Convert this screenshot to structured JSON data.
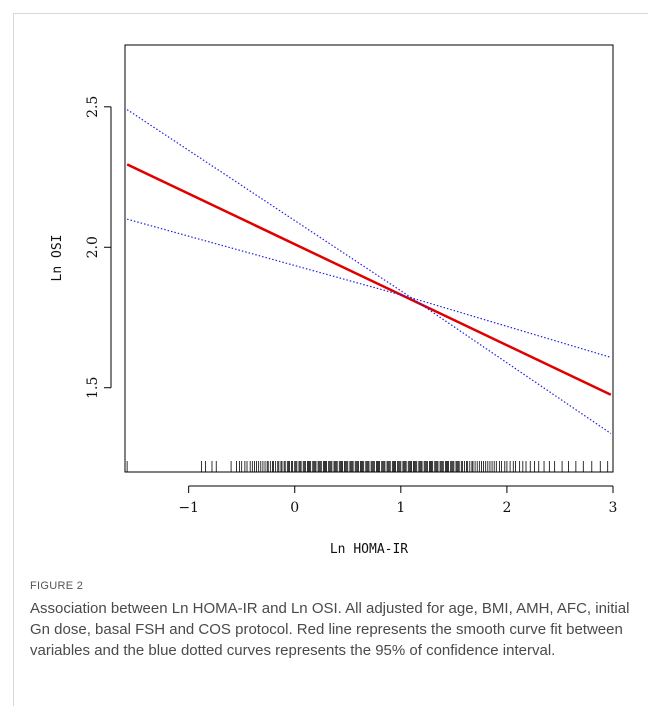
{
  "chart_data": {
    "type": "line",
    "title": "",
    "xlabel": "Ln HOMA-IR",
    "ylabel": "Ln OSI",
    "xlim": [
      -1.6,
      3.0
    ],
    "ylim": [
      1.2,
      2.72
    ],
    "x_ticks": [
      -1,
      0,
      1,
      2,
      3
    ],
    "x_tick_labels": [
      "−1",
      "0",
      "1",
      "2",
      "3"
    ],
    "y_ticks": [
      1.5,
      2.0,
      2.5
    ],
    "y_tick_labels": [
      "1.5",
      "2.0",
      "2.5"
    ],
    "grid": false,
    "series": [
      {
        "role": "fit",
        "color": "#e00000",
        "style": "solid",
        "x": [
          -1.58,
          2.98
        ],
        "y": [
          2.295,
          1.475
        ]
      },
      {
        "role": "ci_upper",
        "color": "#2020e0",
        "style": "dotted",
        "x": [
          -1.58,
          1.1,
          2.98
        ],
        "y": [
          2.49,
          1.82,
          1.608
        ]
      },
      {
        "role": "ci_lower",
        "color": "#2020e0",
        "style": "dotted",
        "x": [
          -1.58,
          1.1,
          2.98
        ],
        "y": [
          2.1,
          1.82,
          1.337
        ]
      }
    ],
    "rug_x": [
      -1.58,
      -0.88,
      -0.84,
      -0.78,
      -0.74,
      -0.6,
      -0.55,
      -0.52,
      -0.5,
      -0.47,
      -0.45,
      -0.42,
      -0.4,
      -0.38,
      -0.36,
      -0.34,
      -0.32,
      -0.3,
      -0.28,
      -0.26,
      -0.25,
      -0.23,
      -0.21,
      -0.2,
      -0.18,
      -0.16,
      -0.15,
      -0.13,
      -0.12,
      -0.1,
      -0.09,
      -0.07,
      -0.06,
      -0.05,
      -0.03,
      -0.02,
      0.0,
      0.01,
      0.02,
      0.04,
      0.05,
      0.06,
      0.08,
      0.09,
      0.1,
      0.12,
      0.13,
      0.14,
      0.15,
      0.17,
      0.18,
      0.19,
      0.2,
      0.22,
      0.23,
      0.24,
      0.25,
      0.27,
      0.28,
      0.29,
      0.3,
      0.32,
      0.33,
      0.34,
      0.35,
      0.37,
      0.38,
      0.39,
      0.4,
      0.42,
      0.43,
      0.44,
      0.45,
      0.47,
      0.48,
      0.49,
      0.5,
      0.52,
      0.53,
      0.54,
      0.55,
      0.57,
      0.58,
      0.59,
      0.6,
      0.62,
      0.63,
      0.64,
      0.65,
      0.67,
      0.68,
      0.69,
      0.7,
      0.72,
      0.73,
      0.74,
      0.75,
      0.77,
      0.78,
      0.79,
      0.8,
      0.82,
      0.83,
      0.84,
      0.85,
      0.87,
      0.88,
      0.89,
      0.9,
      0.92,
      0.93,
      0.94,
      0.95,
      0.97,
      0.98,
      0.99,
      1.0,
      1.02,
      1.03,
      1.04,
      1.05,
      1.07,
      1.08,
      1.09,
      1.1,
      1.12,
      1.13,
      1.14,
      1.15,
      1.17,
      1.18,
      1.19,
      1.2,
      1.22,
      1.23,
      1.24,
      1.25,
      1.27,
      1.28,
      1.29,
      1.3,
      1.32,
      1.33,
      1.34,
      1.35,
      1.37,
      1.38,
      1.39,
      1.4,
      1.42,
      1.43,
      1.44,
      1.45,
      1.47,
      1.48,
      1.49,
      1.5,
      1.52,
      1.53,
      1.54,
      1.55,
      1.57,
      1.58,
      1.6,
      1.62,
      1.63,
      1.65,
      1.67,
      1.68,
      1.7,
      1.72,
      1.74,
      1.76,
      1.78,
      1.8,
      1.82,
      1.84,
      1.86,
      1.88,
      1.9,
      1.93,
      1.95,
      1.98,
      2.0,
      2.03,
      2.06,
      2.08,
      2.12,
      2.15,
      2.18,
      2.22,
      2.26,
      2.3,
      2.35,
      2.4,
      2.45,
      2.52,
      2.58,
      2.65,
      2.72,
      2.8,
      2.88,
      2.95
    ]
  },
  "caption": {
    "label": "FIGURE 2",
    "text": "Association between Ln HOMA-IR and Ln OSI. All adjusted for age, BMI, AMH, AFC, initial Gn dose, basal FSH and COS protocol. Red line represents the smooth curve fit between variables and the blue dotted curves represents the 95% of confidence interval."
  }
}
